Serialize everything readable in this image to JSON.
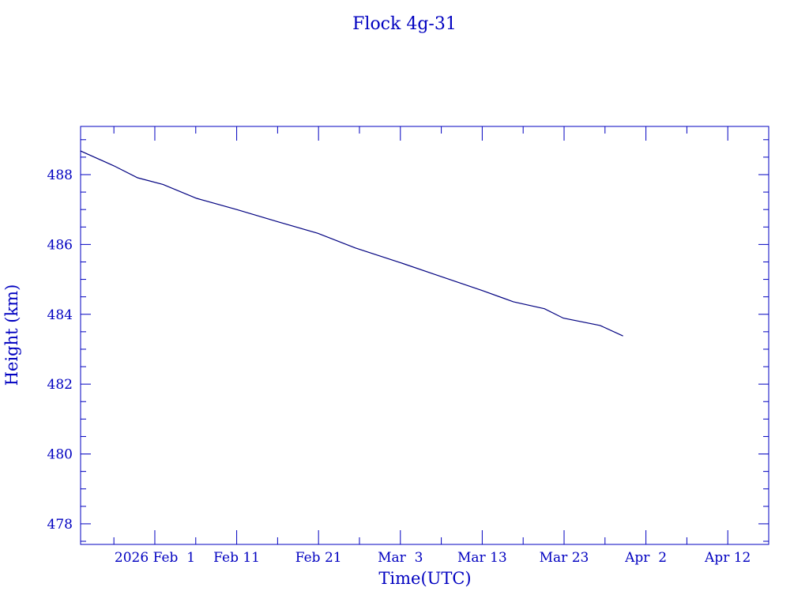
{
  "chart_data": {
    "type": "line",
    "title": "Flock 4g-31",
    "xlabel": "Time(UTC)",
    "ylabel": "Height (km)",
    "x_units": "days since 2026 Feb 1 (UTC)",
    "xlim": [
      -9.07,
      75.0
    ],
    "ylim": [
      477.41,
      489.38
    ],
    "grid": false,
    "x_ticks": [
      {
        "value": 0,
        "label": "2026 Feb  1"
      },
      {
        "value": 10,
        "label": "Feb 11"
      },
      {
        "value": 20,
        "label": "Feb 21"
      },
      {
        "value": 30,
        "label": "Mar  3"
      },
      {
        "value": 40,
        "label": "Mar 13"
      },
      {
        "value": 50,
        "label": "Mar 23"
      },
      {
        "value": 60,
        "label": "Apr  2"
      },
      {
        "value": 70,
        "label": "Apr 12"
      }
    ],
    "x_minor_step": 5,
    "y_ticks": [
      {
        "value": 478,
        "label": "478"
      },
      {
        "value": 480,
        "label": "480"
      },
      {
        "value": 482,
        "label": "482"
      },
      {
        "value": 484,
        "label": "484"
      },
      {
        "value": 486,
        "label": "486"
      },
      {
        "value": 488,
        "label": "488"
      }
    ],
    "y_minor_step": 0.5,
    "series": [
      {
        "name": "Height",
        "color": "#000080",
        "x": [
          -9.1,
          -5.0,
          -2.1,
          1.0,
          5.1,
          10.0,
          15.0,
          19.9,
          24.5,
          30.0,
          34.1,
          40.0,
          43.8,
          47.6,
          49.9,
          54.4,
          57.2
        ],
        "y": [
          488.68,
          488.25,
          487.91,
          487.72,
          487.32,
          487.0,
          486.65,
          486.32,
          485.9,
          485.48,
          485.15,
          484.68,
          484.36,
          484.16,
          483.89,
          483.68,
          483.38
        ]
      }
    ]
  }
}
